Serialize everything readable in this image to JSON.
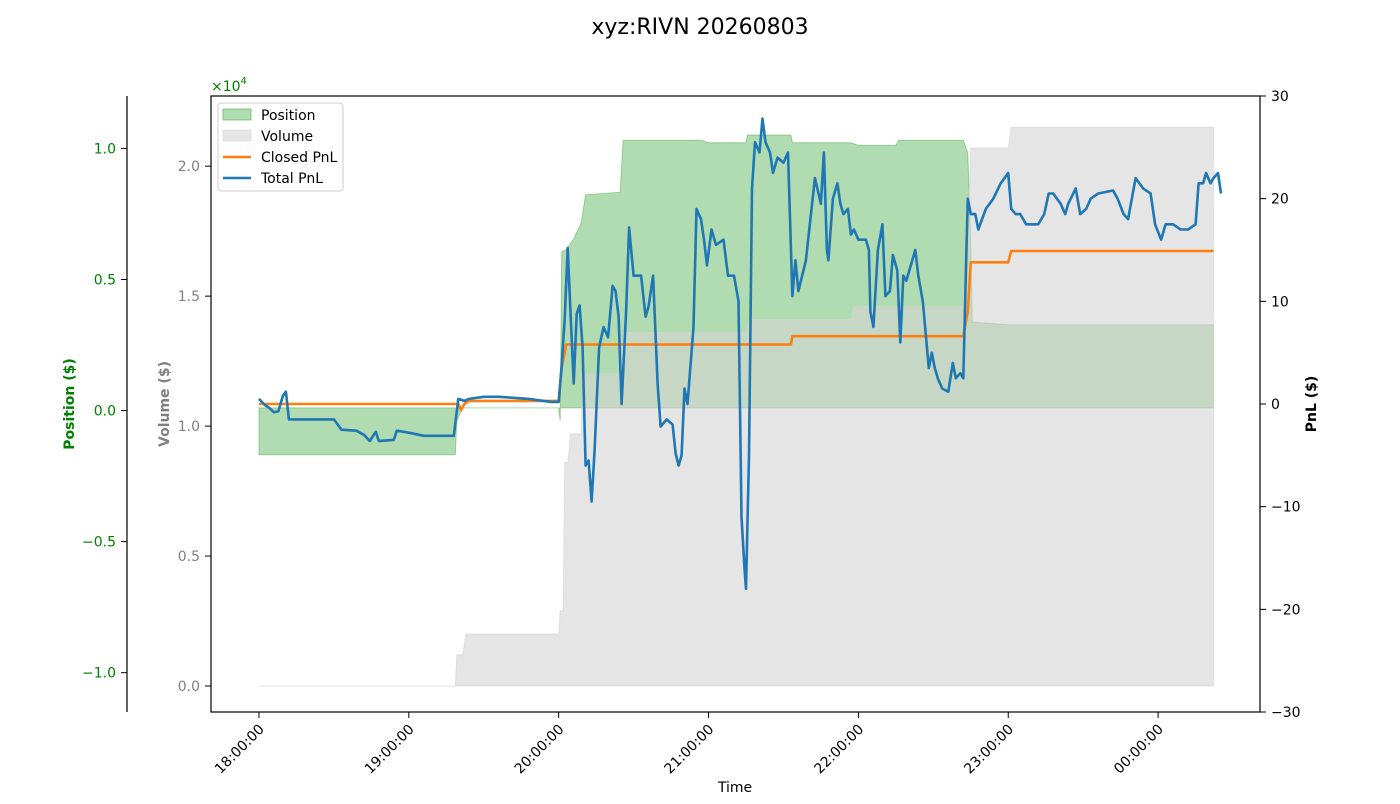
{
  "chart_data": {
    "type": "area",
    "title": "xyz:RIVN 20260803",
    "xlabel": "Time",
    "x_ticks": [
      "18:00:00",
      "19:00:00",
      "20:00:00",
      "21:00:00",
      "22:00:00",
      "23:00:00",
      "00:00:00"
    ],
    "x_range_hours": [
      17.68,
      24.68
    ],
    "grid": false,
    "legend_position": "top-left",
    "axes": {
      "position": {
        "label": "Position ($)",
        "color": "#008000",
        "scale_multiplier": "×10",
        "scale_exponent": "4",
        "ylim": [
          -1.15,
          1.2
        ],
        "ticks": [
          "−1.0",
          "−0.5",
          "0.0",
          "0.5",
          "1.0"
        ]
      },
      "volume": {
        "label": "Volume ($)",
        "color": "#808080",
        "ylim": [
          -0.1,
          2.27
        ],
        "ticks": [
          "0.0",
          "0.5",
          "1.0",
          "1.5",
          "2.0"
        ]
      },
      "pnl": {
        "label": "PnL ($)",
        "color": "#000000",
        "ylim": [
          -30,
          30
        ],
        "ticks": [
          "−30",
          "−20",
          "−10",
          "0",
          "10",
          "20",
          "30"
        ]
      }
    },
    "series": [
      {
        "name": "Position",
        "axis": "volume",
        "kind": "area-between",
        "baseline": 1.07,
        "color": "#2ca02c",
        "points": [
          [
            18.0,
            0.89
          ],
          [
            19.31,
            0.89
          ],
          [
            19.32,
            1.02
          ],
          [
            19.36,
            1.07
          ],
          [
            20.0,
            1.07
          ],
          [
            20.01,
            1.02
          ],
          [
            20.02,
            1.67
          ],
          [
            20.05,
            1.68
          ],
          [
            20.1,
            1.72
          ],
          [
            20.15,
            1.78
          ],
          [
            20.18,
            1.89
          ],
          [
            20.41,
            1.9
          ],
          [
            20.43,
            2.1
          ],
          [
            20.95,
            2.1
          ],
          [
            21.0,
            2.09
          ],
          [
            21.25,
            2.09
          ],
          [
            21.26,
            2.12
          ],
          [
            21.55,
            2.12
          ],
          [
            21.56,
            2.09
          ],
          [
            21.95,
            2.09
          ],
          [
            22.0,
            2.08
          ],
          [
            22.25,
            2.08
          ],
          [
            22.27,
            2.1
          ],
          [
            22.7,
            2.1
          ],
          [
            22.73,
            2.05
          ],
          [
            22.74,
            1.88
          ],
          [
            22.75,
            1.7
          ],
          [
            22.76,
            1.4
          ],
          [
            23.0,
            1.39
          ],
          [
            23.03,
            1.39
          ],
          [
            23.05,
            1.39
          ],
          [
            24.37,
            1.39
          ]
        ]
      },
      {
        "name": "Volume",
        "axis": "volume",
        "kind": "area",
        "color": "#d3d3d3",
        "points": [
          [
            18.0,
            0.0
          ],
          [
            19.31,
            0.0
          ],
          [
            19.32,
            0.12
          ],
          [
            19.36,
            0.12
          ],
          [
            19.38,
            0.2
          ],
          [
            20.0,
            0.2
          ],
          [
            20.01,
            0.29
          ],
          [
            20.03,
            0.29
          ],
          [
            20.04,
            0.86
          ],
          [
            20.06,
            0.86
          ],
          [
            20.08,
            0.97
          ],
          [
            20.15,
            0.97
          ],
          [
            20.16,
            1.2
          ],
          [
            20.41,
            1.2
          ],
          [
            20.43,
            1.36
          ],
          [
            21.25,
            1.36
          ],
          [
            21.27,
            1.41
          ],
          [
            21.95,
            1.41
          ],
          [
            21.97,
            1.46
          ],
          [
            22.7,
            1.46
          ],
          [
            22.74,
            1.9
          ],
          [
            22.75,
            2.07
          ],
          [
            23.0,
            2.07
          ],
          [
            23.02,
            2.15
          ],
          [
            24.37,
            2.15
          ]
        ]
      },
      {
        "name": "Closed PnL",
        "axis": "pnl",
        "kind": "line",
        "color": "#ff7f0e",
        "points": [
          [
            18.0,
            0
          ],
          [
            19.33,
            0
          ],
          [
            19.35,
            -0.6
          ],
          [
            19.37,
            0
          ],
          [
            19.4,
            0.3
          ],
          [
            20.0,
            0.3
          ],
          [
            20.02,
            3.5
          ],
          [
            20.05,
            5.8
          ],
          [
            21.55,
            5.8
          ],
          [
            21.56,
            6.6
          ],
          [
            22.7,
            6.6
          ],
          [
            22.73,
            9.0
          ],
          [
            22.75,
            13.8
          ],
          [
            23.0,
            13.8
          ],
          [
            23.02,
            14.9
          ],
          [
            24.37,
            14.9
          ]
        ]
      },
      {
        "name": "Total PnL",
        "axis": "pnl",
        "kind": "line",
        "color": "#1f77b4",
        "points": [
          [
            18.0,
            0.5
          ],
          [
            18.04,
            -0.1
          ],
          [
            18.07,
            -0.4
          ],
          [
            18.1,
            -0.8
          ],
          [
            18.13,
            -0.7
          ],
          [
            18.16,
            0.8
          ],
          [
            18.18,
            1.2
          ],
          [
            18.2,
            -1.5
          ],
          [
            18.3,
            -1.5
          ],
          [
            18.5,
            -1.5
          ],
          [
            18.55,
            -2.5
          ],
          [
            18.65,
            -2.6
          ],
          [
            18.7,
            -3.0
          ],
          [
            18.74,
            -3.6
          ],
          [
            18.78,
            -2.7
          ],
          [
            18.8,
            -3.6
          ],
          [
            18.9,
            -3.5
          ],
          [
            18.92,
            -2.6
          ],
          [
            19.0,
            -2.8
          ],
          [
            19.1,
            -3.1
          ],
          [
            19.3,
            -3.1
          ],
          [
            19.33,
            0.5
          ],
          [
            19.37,
            0.3
          ],
          [
            19.4,
            0.5
          ],
          [
            19.5,
            0.7
          ],
          [
            19.6,
            0.7
          ],
          [
            19.7,
            0.6
          ],
          [
            19.8,
            0.5
          ],
          [
            19.95,
            0.2
          ],
          [
            20.0,
            0.2
          ],
          [
            20.02,
            3.8
          ],
          [
            20.04,
            8.3
          ],
          [
            20.06,
            15.2
          ],
          [
            20.08,
            8.5
          ],
          [
            20.1,
            2.0
          ],
          [
            20.12,
            8.8
          ],
          [
            20.14,
            9.6
          ],
          [
            20.16,
            5.5
          ],
          [
            20.18,
            -6.0
          ],
          [
            20.2,
            -5.5
          ],
          [
            20.22,
            -9.5
          ],
          [
            20.24,
            -4.5
          ],
          [
            20.27,
            5.5
          ],
          [
            20.3,
            7.5
          ],
          [
            20.33,
            6.5
          ],
          [
            20.36,
            11.5
          ],
          [
            20.38,
            11.0
          ],
          [
            20.4,
            8.5
          ],
          [
            20.42,
            0
          ],
          [
            20.45,
            9.0
          ],
          [
            20.47,
            17.2
          ],
          [
            20.5,
            12.5
          ],
          [
            20.55,
            12.5
          ],
          [
            20.58,
            8.5
          ],
          [
            20.6,
            9.5
          ],
          [
            20.63,
            12.5
          ],
          [
            20.66,
            2.0
          ],
          [
            20.68,
            -2.2
          ],
          [
            20.72,
            -1.5
          ],
          [
            20.76,
            -2.0
          ],
          [
            20.78,
            -4.8
          ],
          [
            20.8,
            -6.0
          ],
          [
            20.82,
            -5.0
          ],
          [
            20.84,
            1.5
          ],
          [
            20.86,
            0
          ],
          [
            20.9,
            7.5
          ],
          [
            20.92,
            19.0
          ],
          [
            20.95,
            18.0
          ],
          [
            20.97,
            16.0
          ],
          [
            20.99,
            13.5
          ],
          [
            21.02,
            17.0
          ],
          [
            21.05,
            15.5
          ],
          [
            21.1,
            16.0
          ],
          [
            21.13,
            12.5
          ],
          [
            21.17,
            12.5
          ],
          [
            21.2,
            10.0
          ],
          [
            21.22,
            -11.0
          ],
          [
            21.24,
            -16.0
          ],
          [
            21.25,
            -18.0
          ],
          [
            21.27,
            -5.0
          ],
          [
            21.29,
            21.0
          ],
          [
            21.31,
            25.5
          ],
          [
            21.34,
            24.5
          ],
          [
            21.36,
            27.8
          ],
          [
            21.38,
            25.5
          ],
          [
            21.41,
            24.5
          ],
          [
            21.43,
            22.5
          ],
          [
            21.46,
            24.0
          ],
          [
            21.5,
            23.5
          ],
          [
            21.53,
            24.5
          ],
          [
            21.56,
            10.5
          ],
          [
            21.58,
            14.0
          ],
          [
            21.6,
            11.0
          ],
          [
            21.65,
            14.0
          ],
          [
            21.68,
            18.0
          ],
          [
            21.71,
            22.0
          ],
          [
            21.75,
            19.5
          ],
          [
            21.77,
            24.5
          ],
          [
            21.79,
            15.0
          ],
          [
            21.8,
            14.0
          ],
          [
            21.83,
            20.0
          ],
          [
            21.86,
            21.5
          ],
          [
            21.88,
            19.5
          ],
          [
            21.9,
            18.5
          ],
          [
            21.93,
            19.0
          ],
          [
            21.95,
            16.5
          ],
          [
            21.97,
            17.0
          ],
          [
            22.0,
            16.0
          ],
          [
            22.05,
            16.0
          ],
          [
            22.07,
            15.0
          ],
          [
            22.08,
            9.0
          ],
          [
            22.1,
            7.5
          ],
          [
            22.13,
            15.0
          ],
          [
            22.16,
            17.5
          ],
          [
            22.18,
            10.5
          ],
          [
            22.21,
            11.0
          ],
          [
            22.23,
            14.5
          ],
          [
            22.26,
            13.0
          ],
          [
            22.28,
            6.0
          ],
          [
            22.3,
            12.5
          ],
          [
            22.32,
            12.0
          ],
          [
            22.35,
            13.5
          ],
          [
            22.38,
            15.0
          ],
          [
            22.4,
            12.5
          ],
          [
            22.43,
            10.0
          ],
          [
            22.47,
            3.5
          ],
          [
            22.49,
            5.0
          ],
          [
            22.51,
            3.5
          ],
          [
            22.53,
            2.5
          ],
          [
            22.56,
            1.5
          ],
          [
            22.6,
            1.2
          ],
          [
            22.63,
            4.0
          ],
          [
            22.65,
            2.5
          ],
          [
            22.68,
            3.0
          ],
          [
            22.7,
            2.5
          ],
          [
            22.72,
            14.5
          ],
          [
            22.73,
            20.0
          ],
          [
            22.75,
            18.5
          ],
          [
            22.78,
            18.5
          ],
          [
            22.8,
            17.0
          ],
          [
            22.85,
            19.0
          ],
          [
            22.9,
            20.0
          ],
          [
            22.95,
            21.5
          ],
          [
            23.0,
            22.5
          ],
          [
            23.02,
            19.0
          ],
          [
            23.05,
            18.5
          ],
          [
            23.08,
            18.5
          ],
          [
            23.12,
            17.5
          ],
          [
            23.2,
            17.5
          ],
          [
            23.24,
            18.5
          ],
          [
            23.27,
            20.5
          ],
          [
            23.3,
            20.5
          ],
          [
            23.35,
            19.5
          ],
          [
            23.38,
            18.5
          ],
          [
            23.4,
            19.5
          ],
          [
            23.45,
            21.0
          ],
          [
            23.48,
            18.5
          ],
          [
            23.52,
            19.0
          ],
          [
            23.55,
            20.0
          ],
          [
            23.6,
            20.5
          ],
          [
            23.7,
            20.8
          ],
          [
            23.73,
            20.0
          ],
          [
            23.77,
            18.5
          ],
          [
            23.8,
            18.0
          ],
          [
            23.85,
            22.0
          ],
          [
            23.9,
            21.0
          ],
          [
            23.95,
            20.5
          ],
          [
            23.98,
            17.5
          ],
          [
            24.02,
            16.0
          ],
          [
            24.05,
            17.5
          ],
          [
            24.1,
            17.5
          ],
          [
            24.15,
            17.0
          ],
          [
            24.2,
            17.0
          ],
          [
            24.25,
            17.5
          ],
          [
            24.27,
            21.5
          ],
          [
            24.3,
            21.5
          ],
          [
            24.32,
            22.5
          ],
          [
            24.35,
            21.5
          ],
          [
            24.37,
            22.0
          ],
          [
            24.4,
            22.5
          ],
          [
            24.42,
            20.5
          ]
        ]
      }
    ]
  }
}
